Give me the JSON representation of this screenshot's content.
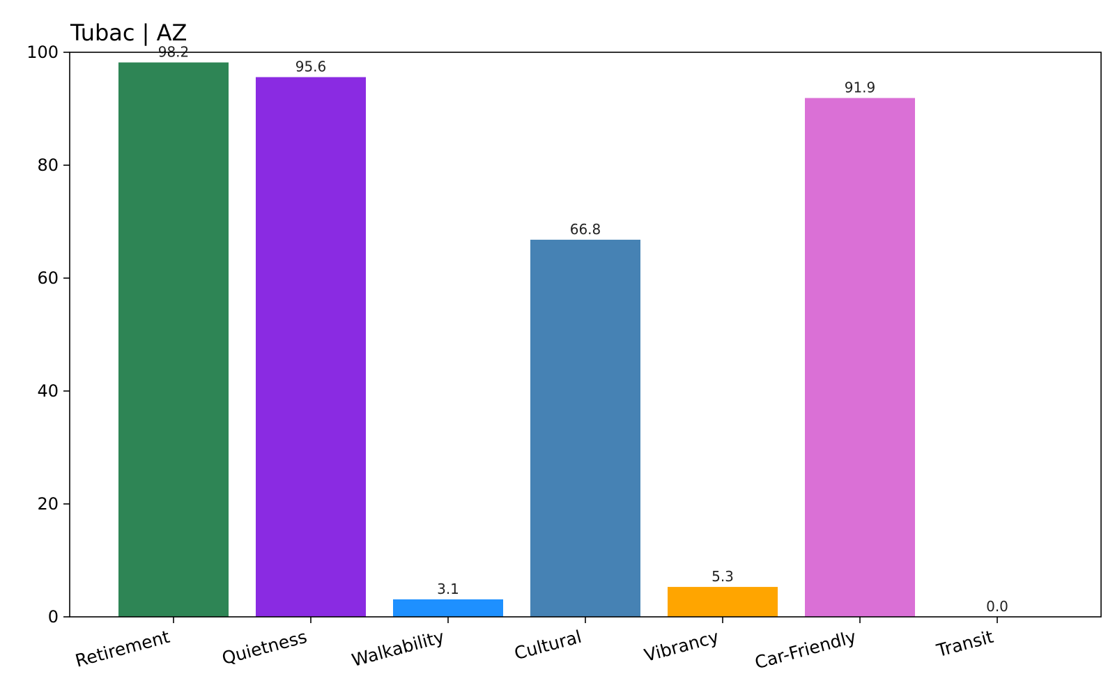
{
  "chart_data": {
    "type": "bar",
    "title": "Tubac | AZ",
    "xlabel": "",
    "ylabel": "",
    "categories": [
      "Retirement",
      "Quietness",
      "Walkability",
      "Cultural",
      "Vibrancy",
      "Car-Friendly",
      "Transit"
    ],
    "values": [
      98.2,
      95.6,
      3.1,
      66.8,
      5.3,
      91.9,
      0.0
    ],
    "value_labels": [
      "98.2",
      "95.6",
      "3.1",
      "66.8",
      "5.3",
      "91.9",
      "0.0"
    ],
    "colors": [
      "#2e8555",
      "#8a2be2",
      "#1e90ff",
      "#4682b4",
      "#ffa500",
      "#da70d6",
      "#7f7f7f"
    ],
    "ylim": [
      0,
      100
    ],
    "yticks": [
      0,
      20,
      40,
      60,
      80,
      100
    ],
    "ytick_labels": [
      "0",
      "20",
      "40",
      "60",
      "80",
      "100"
    ],
    "grid": false,
    "legend": "none"
  }
}
